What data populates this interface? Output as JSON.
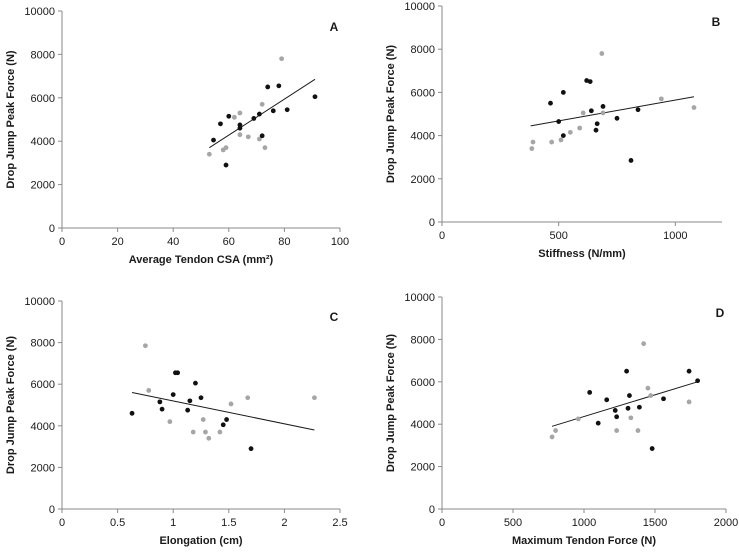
{
  "chart_data": [
    {
      "type": "scatter",
      "panel": "A",
      "xlabel": "Average Tendon CSA (mm²)",
      "ylabel": "Drop Jump Peak Force (N)",
      "xlim": [
        0,
        100
      ],
      "ylim": [
        0,
        10000
      ],
      "xticks": [
        0,
        20,
        40,
        60,
        80,
        100
      ],
      "yticks": [
        0,
        2000,
        4000,
        6000,
        8000,
        10000
      ],
      "colors": {
        "black": "#111111",
        "gray": "#a6a6a6"
      },
      "series": [
        {
          "name": "black",
          "points": [
            [
              54.5,
              4050
            ],
            [
              57,
              4800
            ],
            [
              59,
              2900
            ],
            [
              60,
              5150
            ],
            [
              64,
              4600
            ],
            [
              64,
              4750
            ],
            [
              69,
              5050
            ],
            [
              71,
              5250
            ],
            [
              72,
              4250
            ],
            [
              74,
              6500
            ],
            [
              76,
              5400
            ],
            [
              78,
              6550
            ],
            [
              81,
              5450
            ],
            [
              91,
              6050
            ]
          ]
        },
        {
          "name": "gray",
          "points": [
            [
              53,
              3400
            ],
            [
              58,
              3600
            ],
            [
              59,
              3700
            ],
            [
              62,
              5100
            ],
            [
              64,
              5300
            ],
            [
              64,
              4300
            ],
            [
              67,
              4200
            ],
            [
              71,
              4100
            ],
            [
              72,
              5700
            ],
            [
              73,
              3700
            ],
            [
              79,
              7800
            ]
          ]
        }
      ],
      "trendline": [
        [
          53,
          3700
        ],
        [
          91,
          6850
        ]
      ]
    },
    {
      "type": "scatter",
      "panel": "B",
      "xlabel": "Stiffness (N/mm)",
      "ylabel": "Drop Jump Peak Force (N)",
      "xlim": [
        0,
        1200
      ],
      "ylim": [
        0,
        10000
      ],
      "xticks": [
        0,
        500,
        1000
      ],
      "yticks": [
        0,
        2000,
        4000,
        6000,
        8000,
        10000
      ],
      "colors": {
        "black": "#111111",
        "gray": "#a6a6a6"
      },
      "series": [
        {
          "name": "black",
          "points": [
            [
              465,
              5500
            ],
            [
              500,
              4650
            ],
            [
              520,
              6000
            ],
            [
              520,
              4000
            ],
            [
              620,
              6550
            ],
            [
              635,
              6500
            ],
            [
              640,
              5150
            ],
            [
              660,
              4250
            ],
            [
              665,
              4550
            ],
            [
              690,
              5350
            ],
            [
              750,
              4800
            ],
            [
              810,
              2850
            ],
            [
              840,
              5200
            ]
          ]
        },
        {
          "name": "gray",
          "points": [
            [
              385,
              3400
            ],
            [
              390,
              3700
            ],
            [
              470,
              3700
            ],
            [
              510,
              3800
            ],
            [
              550,
              4150
            ],
            [
              590,
              4350
            ],
            [
              605,
              5050
            ],
            [
              685,
              7800
            ],
            [
              690,
              5050
            ],
            [
              940,
              5700
            ],
            [
              1080,
              5300
            ]
          ]
        }
      ],
      "trendline": [
        [
          380,
          4450
        ],
        [
          1080,
          5800
        ]
      ]
    },
    {
      "type": "scatter",
      "panel": "C",
      "xlabel": "Elongation (cm)",
      "ylabel": "Drop Jump Peak Force (N)",
      "xlim": [
        0,
        2.5
      ],
      "ylim": [
        0,
        10000
      ],
      "xticks": [
        0,
        0.5,
        1,
        1.5,
        2,
        2.5
      ],
      "yticks": [
        0,
        2000,
        4000,
        6000,
        8000,
        10000
      ],
      "colors": {
        "black": "#111111",
        "gray": "#a6a6a6"
      },
      "series": [
        {
          "name": "black",
          "points": [
            [
              0.63,
              4600
            ],
            [
              0.88,
              5150
            ],
            [
              0.9,
              4800
            ],
            [
              1.0,
              5500
            ],
            [
              1.02,
              6550
            ],
            [
              1.04,
              6550
            ],
            [
              1.13,
              4750
            ],
            [
              1.15,
              5200
            ],
            [
              1.2,
              6050
            ],
            [
              1.25,
              5350
            ],
            [
              1.45,
              4050
            ],
            [
              1.48,
              4300
            ],
            [
              1.7,
              2900
            ]
          ]
        },
        {
          "name": "gray",
          "points": [
            [
              0.75,
              7850
            ],
            [
              0.78,
              5700
            ],
            [
              0.97,
              4200
            ],
            [
              1.18,
              3700
            ],
            [
              1.27,
              4300
            ],
            [
              1.29,
              3700
            ],
            [
              1.32,
              3400
            ],
            [
              1.42,
              3700
            ],
            [
              1.52,
              5050
            ],
            [
              1.67,
              5350
            ],
            [
              2.27,
              5350
            ]
          ]
        }
      ],
      "trendline": [
        [
          0.63,
          5600
        ],
        [
          2.27,
          3800
        ]
      ]
    },
    {
      "type": "scatter",
      "panel": "D",
      "xlabel": "Maximum Tendon Force (N)",
      "ylabel": "Drop Jump Peak Force (N)",
      "xlim": [
        0,
        2000
      ],
      "ylim": [
        0,
        10000
      ],
      "xticks": [
        0,
        500,
        1000,
        1500,
        2000
      ],
      "yticks": [
        0,
        2000,
        4000,
        6000,
        8000,
        10000
      ],
      "colors": {
        "black": "#111111",
        "gray": "#a6a6a6"
      },
      "series": [
        {
          "name": "black",
          "points": [
            [
              1040,
              5500
            ],
            [
              1100,
              4050
            ],
            [
              1160,
              5150
            ],
            [
              1220,
              4650
            ],
            [
              1230,
              4350
            ],
            [
              1300,
              6500
            ],
            [
              1310,
              4750
            ],
            [
              1320,
              5350
            ],
            [
              1390,
              4800
            ],
            [
              1480,
              2850
            ],
            [
              1560,
              5200
            ],
            [
              1740,
              6500
            ],
            [
              1800,
              6050
            ]
          ]
        },
        {
          "name": "gray",
          "points": [
            [
              775,
              3400
            ],
            [
              800,
              3700
            ],
            [
              960,
              4250
            ],
            [
              1230,
              3700
            ],
            [
              1330,
              4300
            ],
            [
              1380,
              3700
            ],
            [
              1420,
              7800
            ],
            [
              1450,
              5700
            ],
            [
              1470,
              5350
            ],
            [
              1740,
              5050
            ]
          ]
        }
      ],
      "trendline": [
        [
          775,
          3900
        ],
        [
          1800,
          6000
        ]
      ]
    }
  ]
}
